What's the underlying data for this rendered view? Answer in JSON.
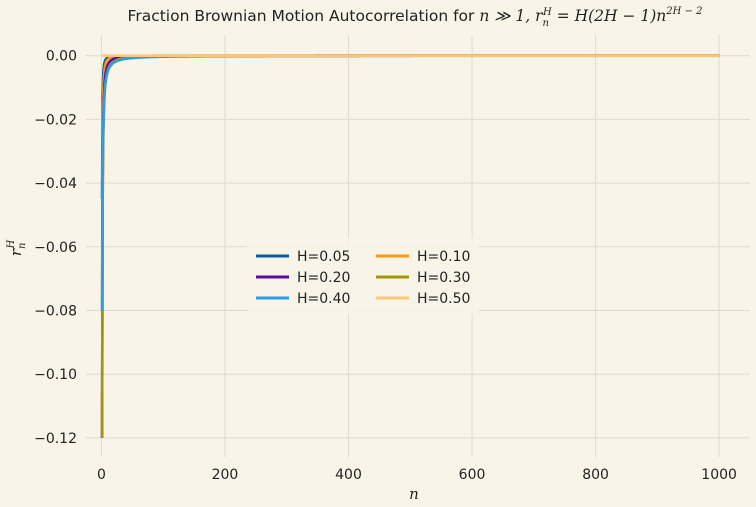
{
  "chart_data": {
    "type": "line",
    "title": "Fraction Brownian Motion Autocorrelation for n ≫ 1, r_n^H = H(2H − 1)n^{2H−2}",
    "title_parts": {
      "prefix": "Fraction Brownian Motion Autocorrelation for ",
      "cond": "n ≫ 1, ",
      "r": "r",
      "sub": "n",
      "sup": "H",
      "formula": " = H(2H − 1)n",
      "exp": "2H − 2"
    },
    "xlabel": "n",
    "ylabel": {
      "base": "r",
      "sub": "n",
      "sup": "H"
    },
    "xlim": [
      -25,
      1050
    ],
    "ylim": [
      -0.126,
      0.0065
    ],
    "xticks": [
      0,
      200,
      400,
      600,
      800,
      1000
    ],
    "xtick_labels": [
      "0",
      "200",
      "400",
      "600",
      "800",
      "1000"
    ],
    "yticks": [
      0.0,
      -0.02,
      -0.04,
      -0.06,
      -0.08,
      -0.1,
      -0.12
    ],
    "ytick_labels": [
      "0.00",
      "−0.02",
      "−0.04",
      "−0.06",
      "−0.08",
      "−0.10",
      "−0.12"
    ],
    "grid": true,
    "legend_position": "center",
    "legend_columns": 2,
    "x_range": [
      1,
      1000
    ],
    "series": [
      {
        "name": "H=0.05",
        "H": 0.05,
        "color": "#0c5da5"
      },
      {
        "name": "H=0.10",
        "H": 0.1,
        "color": "#f39c12"
      },
      {
        "name": "H=0.20",
        "H": 0.2,
        "color": "#5b0b9e"
      },
      {
        "name": "H=0.30",
        "H": 0.3,
        "color": "#a39709"
      },
      {
        "name": "H=0.40",
        "H": 0.4,
        "color": "#2e9ce8"
      },
      {
        "name": "H=0.50",
        "H": 0.5,
        "color": "#ffc67a"
      }
    ],
    "legend_order": [
      0,
      2,
      4,
      1,
      3,
      5
    ]
  }
}
